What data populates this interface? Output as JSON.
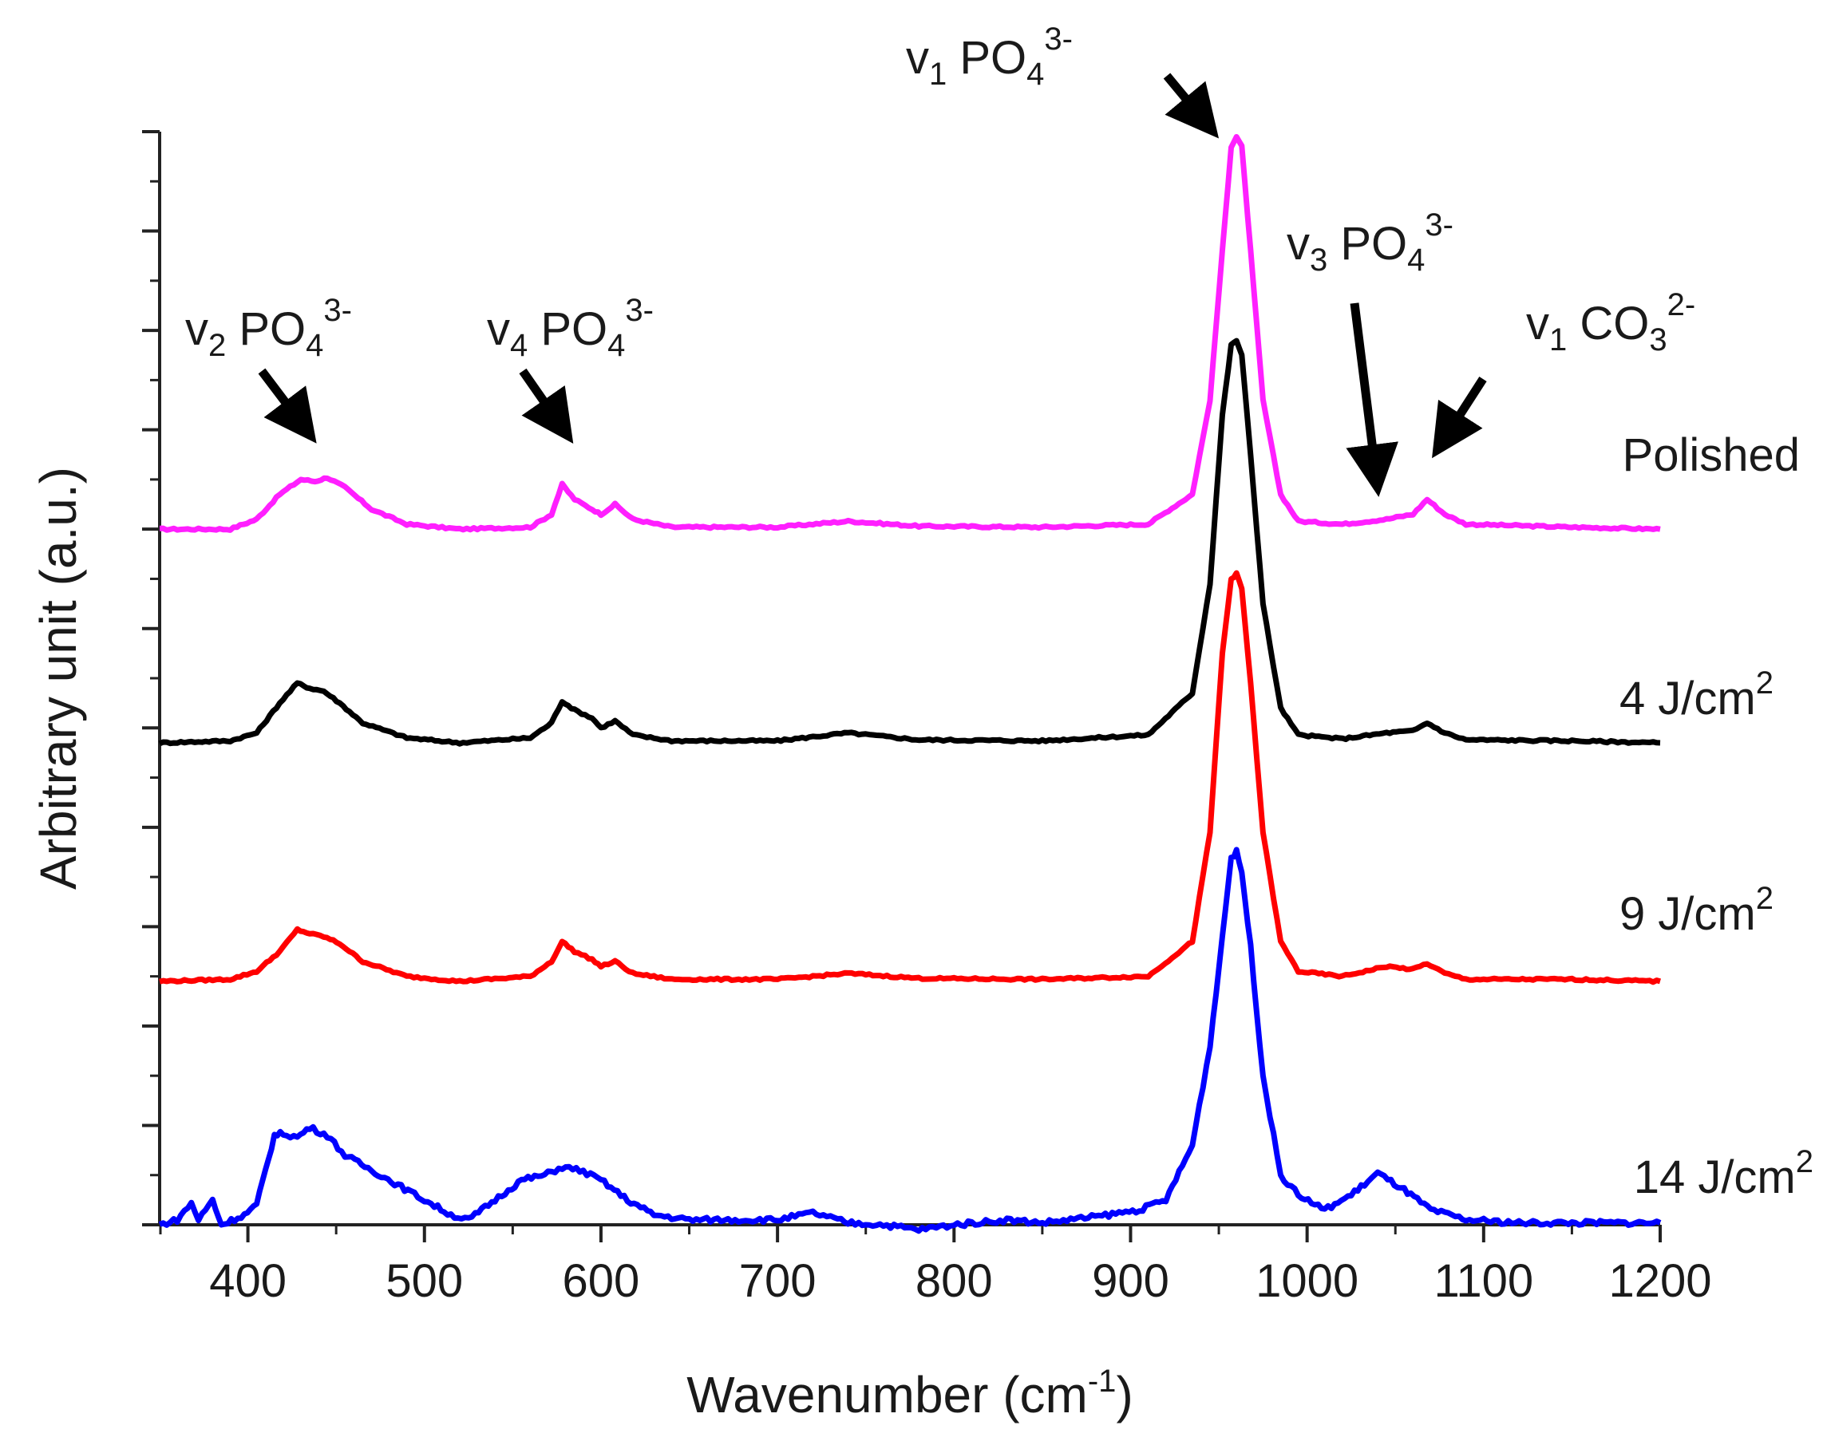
{
  "chart_data": {
    "type": "line",
    "title": "",
    "xlabel": "Wavenumber (cm",
    "xlabel_sup": "-1",
    "xlabel_end": ")",
    "ylabel": "Arbitrary unit (a.u.)",
    "xlim": [
      350,
      1200
    ],
    "ylim": [
      0,
      11
    ],
    "xticks": [
      400,
      500,
      600,
      700,
      800,
      900,
      1000,
      1100,
      1200
    ],
    "grid": false,
    "series": [
      {
        "name": "Polished",
        "label_main": "Polished",
        "label_sup": "",
        "color": "#ff1fff",
        "offset": 7.0,
        "points": [
          [
            350,
            0
          ],
          [
            390,
            0
          ],
          [
            405,
            0.1
          ],
          [
            418,
            0.35
          ],
          [
            430,
            0.5
          ],
          [
            438,
            0.48
          ],
          [
            445,
            0.52
          ],
          [
            455,
            0.42
          ],
          [
            470,
            0.2
          ],
          [
            490,
            0.05
          ],
          [
            520,
            0
          ],
          [
            560,
            0.02
          ],
          [
            572,
            0.15
          ],
          [
            578,
            0.45
          ],
          [
            585,
            0.3
          ],
          [
            595,
            0.2
          ],
          [
            600,
            0.15
          ],
          [
            608,
            0.25
          ],
          [
            618,
            0.1
          ],
          [
            640,
            0.02
          ],
          [
            700,
            0.02
          ],
          [
            740,
            0.08
          ],
          [
            780,
            0.03
          ],
          [
            850,
            0.02
          ],
          [
            910,
            0.05
          ],
          [
            935,
            0.35
          ],
          [
            945,
            1.3
          ],
          [
            952,
            2.8
          ],
          [
            957,
            3.85
          ],
          [
            960,
            3.95
          ],
          [
            963,
            3.85
          ],
          [
            968,
            2.8
          ],
          [
            975,
            1.3
          ],
          [
            985,
            0.35
          ],
          [
            995,
            0.08
          ],
          [
            1020,
            0.05
          ],
          [
            1045,
            0.1
          ],
          [
            1060,
            0.15
          ],
          [
            1068,
            0.3
          ],
          [
            1078,
            0.15
          ],
          [
            1090,
            0.05
          ],
          [
            1150,
            0.02
          ],
          [
            1200,
            0
          ]
        ]
      },
      {
        "name": "4 J/cm2",
        "label_main": "4 J/cm",
        "label_sup": "2",
        "color": "#000000",
        "offset": 4.85,
        "points": [
          [
            350,
            0
          ],
          [
            390,
            0.02
          ],
          [
            405,
            0.1
          ],
          [
            418,
            0.4
          ],
          [
            428,
            0.6
          ],
          [
            435,
            0.55
          ],
          [
            443,
            0.52
          ],
          [
            452,
            0.4
          ],
          [
            465,
            0.2
          ],
          [
            490,
            0.05
          ],
          [
            520,
            0
          ],
          [
            560,
            0.05
          ],
          [
            572,
            0.2
          ],
          [
            578,
            0.42
          ],
          [
            585,
            0.33
          ],
          [
            595,
            0.25
          ],
          [
            600,
            0.15
          ],
          [
            608,
            0.22
          ],
          [
            618,
            0.08
          ],
          [
            640,
            0.02
          ],
          [
            700,
            0.02
          ],
          [
            740,
            0.1
          ],
          [
            780,
            0.03
          ],
          [
            850,
            0.02
          ],
          [
            910,
            0.08
          ],
          [
            935,
            0.5
          ],
          [
            945,
            1.6
          ],
          [
            952,
            3.3
          ],
          [
            957,
            4.0
          ],
          [
            960,
            4.05
          ],
          [
            963,
            3.9
          ],
          [
            968,
            2.9
          ],
          [
            975,
            1.4
          ],
          [
            985,
            0.35
          ],
          [
            995,
            0.08
          ],
          [
            1020,
            0.04
          ],
          [
            1045,
            0.1
          ],
          [
            1060,
            0.12
          ],
          [
            1068,
            0.2
          ],
          [
            1078,
            0.1
          ],
          [
            1090,
            0.03
          ],
          [
            1150,
            0.02
          ],
          [
            1200,
            0
          ]
        ]
      },
      {
        "name": "9 J/cm2",
        "label_main": "9 J/cm",
        "label_sup": "2",
        "color": "#ff0000",
        "offset": 2.45,
        "points": [
          [
            350,
            0
          ],
          [
            390,
            0.02
          ],
          [
            405,
            0.1
          ],
          [
            418,
            0.3
          ],
          [
            428,
            0.52
          ],
          [
            435,
            0.48
          ],
          [
            443,
            0.45
          ],
          [
            452,
            0.38
          ],
          [
            465,
            0.2
          ],
          [
            490,
            0.05
          ],
          [
            520,
            0
          ],
          [
            560,
            0.05
          ],
          [
            572,
            0.2
          ],
          [
            578,
            0.4
          ],
          [
            585,
            0.3
          ],
          [
            595,
            0.22
          ],
          [
            600,
            0.15
          ],
          [
            608,
            0.2
          ],
          [
            618,
            0.08
          ],
          [
            640,
            0.02
          ],
          [
            700,
            0.02
          ],
          [
            740,
            0.08
          ],
          [
            780,
            0.03
          ],
          [
            850,
            0.02
          ],
          [
            910,
            0.05
          ],
          [
            935,
            0.4
          ],
          [
            945,
            1.5
          ],
          [
            952,
            3.3
          ],
          [
            957,
            4.05
          ],
          [
            960,
            4.1
          ],
          [
            963,
            3.95
          ],
          [
            968,
            3.0
          ],
          [
            975,
            1.5
          ],
          [
            985,
            0.4
          ],
          [
            995,
            0.1
          ],
          [
            1020,
            0.05
          ],
          [
            1045,
            0.15
          ],
          [
            1060,
            0.12
          ],
          [
            1068,
            0.18
          ],
          [
            1078,
            0.08
          ],
          [
            1090,
            0.02
          ],
          [
            1150,
            0.02
          ],
          [
            1200,
            0
          ]
        ]
      },
      {
        "name": "14 J/cm2",
        "label_main": "14 J/cm",
        "label_sup": "2",
        "color": "#0000ff",
        "offset": 0.0,
        "points": [
          [
            350,
            0
          ],
          [
            360,
            0.05
          ],
          [
            368,
            0.22
          ],
          [
            372,
            0.05
          ],
          [
            380,
            0.25
          ],
          [
            385,
            0
          ],
          [
            398,
            0.1
          ],
          [
            405,
            0.2
          ],
          [
            410,
            0.55
          ],
          [
            415,
            0.9
          ],
          [
            420,
            0.92
          ],
          [
            428,
            0.88
          ],
          [
            435,
            0.98
          ],
          [
            445,
            0.9
          ],
          [
            455,
            0.7
          ],
          [
            470,
            0.55
          ],
          [
            485,
            0.4
          ],
          [
            500,
            0.25
          ],
          [
            515,
            0.1
          ],
          [
            525,
            0.05
          ],
          [
            540,
            0.25
          ],
          [
            555,
            0.45
          ],
          [
            568,
            0.5
          ],
          [
            578,
            0.58
          ],
          [
            588,
            0.55
          ],
          [
            600,
            0.45
          ],
          [
            615,
            0.25
          ],
          [
            630,
            0.1
          ],
          [
            650,
            0.05
          ],
          [
            680,
            0.05
          ],
          [
            700,
            0.05
          ],
          [
            720,
            0.12
          ],
          [
            740,
            0.02
          ],
          [
            760,
            0
          ],
          [
            780,
            -0.05
          ],
          [
            800,
            0
          ],
          [
            830,
            0.05
          ],
          [
            850,
            0.02
          ],
          [
            880,
            0.08
          ],
          [
            905,
            0.15
          ],
          [
            920,
            0.25
          ],
          [
            935,
            0.8
          ],
          [
            945,
            1.8
          ],
          [
            952,
            2.9
          ],
          [
            957,
            3.7
          ],
          [
            960,
            3.75
          ],
          [
            963,
            3.55
          ],
          [
            968,
            2.8
          ],
          [
            975,
            1.5
          ],
          [
            985,
            0.5
          ],
          [
            995,
            0.3
          ],
          [
            1010,
            0.15
          ],
          [
            1025,
            0.3
          ],
          [
            1040,
            0.52
          ],
          [
            1055,
            0.35
          ],
          [
            1070,
            0.15
          ],
          [
            1090,
            0.05
          ],
          [
            1120,
            0.02
          ],
          [
            1200,
            0.02
          ]
        ]
      }
    ],
    "annotations": [
      {
        "label_main": "v",
        "label_sub": "1",
        "label_rest": " PO",
        "label_sub2": "4",
        "label_sup": "3-",
        "peak": 960
      },
      {
        "label_main": "v",
        "label_sub": "2",
        "label_rest": " PO",
        "label_sub2": "4",
        "label_sup": "3-",
        "peak": 435
      },
      {
        "label_main": "v",
        "label_sub": "4",
        "label_rest": " PO",
        "label_sub2": "4",
        "label_sup": "3-",
        "peak": 580
      },
      {
        "label_main": "v",
        "label_sub": "3",
        "label_rest": " PO",
        "label_sub2": "4",
        "label_sup": "3-",
        "peak": 1042
      },
      {
        "label_main": "v",
        "label_sub": "1",
        "label_rest": " CO",
        "label_sub2": "3",
        "label_sup": "2-",
        "peak": 1070
      }
    ]
  }
}
